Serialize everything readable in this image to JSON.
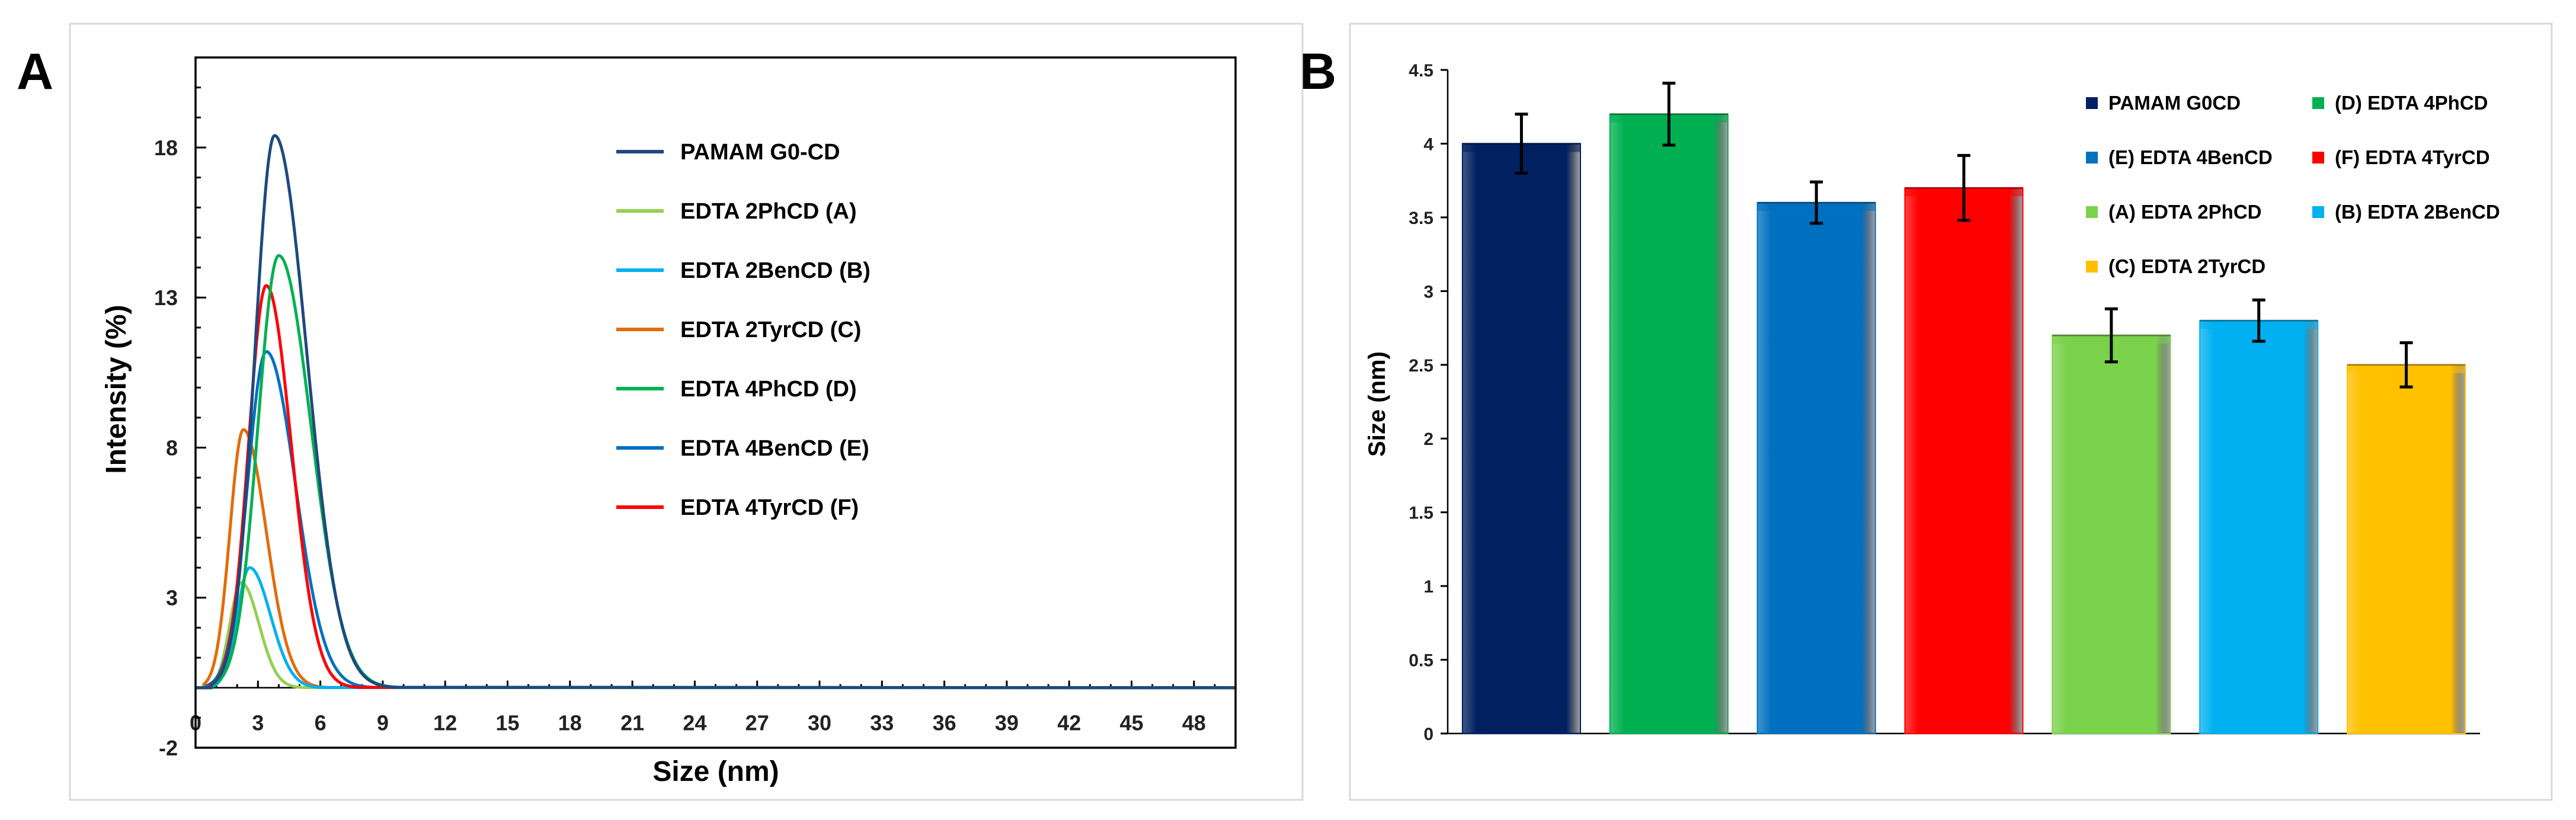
{
  "chart_data": [
    {
      "panel_label": "A",
      "type": "line",
      "xlabel": "Size (nm)",
      "ylabel": "Intensity (%)",
      "xlim": [
        0,
        50
      ],
      "ylim": [
        -2,
        21
      ],
      "xticks": [
        0,
        3,
        6,
        9,
        12,
        15,
        18,
        21,
        24,
        27,
        30,
        33,
        36,
        39,
        42,
        45,
        48
      ],
      "yticks": [
        -2,
        3,
        8,
        13,
        18
      ],
      "legend_position": "top-right",
      "series": [
        {
          "name": "PAMAM G0-CD",
          "color": "#1f497d",
          "peak_x": 3.8,
          "peak_y": 18.4,
          "sigma_left": 0.95,
          "sigma_right": 1.55
        },
        {
          "name": "EDTA 2PhCD (A)",
          "color": "#92d050",
          "peak_x": 2.2,
          "peak_y": 3.5,
          "sigma_left": 0.55,
          "sigma_right": 0.85
        },
        {
          "name": "EDTA 2BenCD (B)",
          "color": "#00b0f0",
          "peak_x": 2.6,
          "peak_y": 4.0,
          "sigma_left": 0.6,
          "sigma_right": 1.0
        },
        {
          "name": "EDTA 2TyrCD (C)",
          "color": "#e36c09",
          "peak_x": 2.3,
          "peak_y": 8.6,
          "sigma_left": 0.65,
          "sigma_right": 1.1
        },
        {
          "name": "EDTA 4PhCD (D)",
          "color": "#00b050",
          "peak_x": 4.0,
          "peak_y": 14.4,
          "sigma_left": 1.0,
          "sigma_right": 1.55
        },
        {
          "name": "EDTA 4BenCD (E)",
          "color": "#0070c0",
          "peak_x": 3.4,
          "peak_y": 11.2,
          "sigma_left": 0.9,
          "sigma_right": 1.4
        },
        {
          "name": "EDTA 4TyrCD (F)",
          "color": "#ff0000",
          "peak_x": 3.4,
          "peak_y": 13.4,
          "sigma_left": 0.85,
          "sigma_right": 1.2
        }
      ]
    },
    {
      "panel_label": "B",
      "type": "bar",
      "xlabel": "",
      "ylabel": "Size (nm)",
      "ylim": [
        0,
        4.5
      ],
      "yticks": [
        "0",
        "0.5",
        "1",
        "1.5",
        "2",
        "2.5",
        "3",
        "3.5",
        "4",
        "4.5"
      ],
      "legend_position": "top-right",
      "series": [
        {
          "name": "PAMAM G0CD",
          "value": 4.0,
          "error": 0.2,
          "color": "#002060"
        },
        {
          "name": "(D) EDTA 4PhCD",
          "value": 4.2,
          "error": 0.21,
          "color": "#00b050"
        },
        {
          "name": "(E) EDTA 4BenCD",
          "value": 3.6,
          "error": 0.14,
          "color": "#0070c0"
        },
        {
          "name": "(F) EDTA 4TyrCD",
          "value": 3.7,
          "error": 0.22,
          "color": "#ff0000"
        },
        {
          "name": "(A) EDTA 2PhCD",
          "value": 2.7,
          "error": 0.18,
          "color": "#7ad14a"
        },
        {
          "name": "(B) EDTA 2BenCD",
          "value": 2.8,
          "error": 0.14,
          "color": "#00b0f0"
        },
        {
          "name": "(C) EDTA 2TyrCD",
          "value": 2.5,
          "error": 0.15,
          "color": "#ffc000"
        }
      ]
    }
  ]
}
